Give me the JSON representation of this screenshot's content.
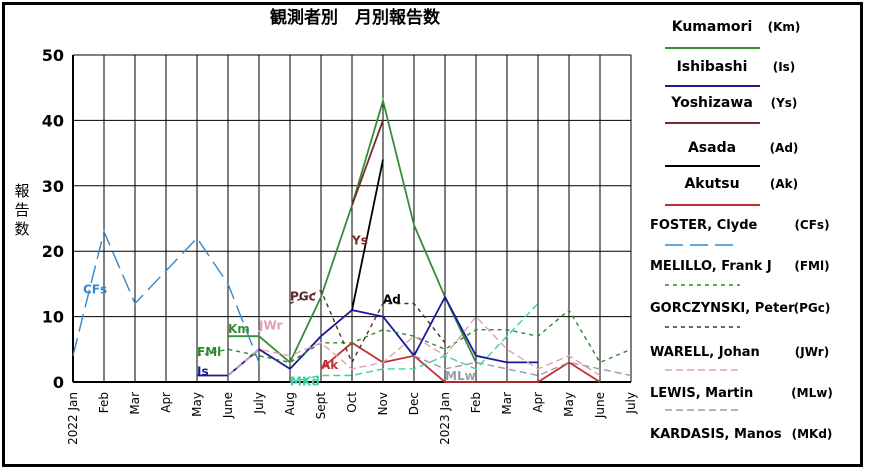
{
  "chart_data": {
    "type": "line",
    "title": "観測者別　月別報告数",
    "ylabel": "報告数",
    "xlabel": "",
    "ylim": [
      0,
      50
    ],
    "yticks": [
      0,
      10,
      20,
      30,
      40,
      50
    ],
    "grid": true,
    "legend_position": "right",
    "categories": [
      "2022 Jan",
      "Feb",
      "Mar",
      "Apr",
      "May",
      "June",
      "July",
      "Aug",
      "Sept",
      "Oct",
      "Nov",
      "Dec",
      "2023 Jan",
      "Feb",
      "Mar",
      "Apr",
      "May",
      "June",
      "July"
    ],
    "series": [
      {
        "name": "Kumamori",
        "abbr": "(Km)",
        "color": "#3a8a3a",
        "dash": "solid",
        "label": "Km",
        "label_at": 5,
        "label_y": 7.5,
        "values": [
          null,
          null,
          null,
          null,
          null,
          7,
          7,
          3,
          13,
          27,
          43,
          24,
          13,
          3,
          null,
          null,
          null,
          null,
          null
        ]
      },
      {
        "name": "Ishibashi",
        "abbr": "(Is)",
        "color": "#1a1a9a",
        "dash": "solid",
        "label": "Is",
        "label_at": 4,
        "label_y": 1,
        "values": [
          null,
          null,
          null,
          null,
          1,
          1,
          5,
          2,
          7,
          11,
          10,
          4,
          13,
          4,
          3,
          3,
          null,
          null,
          null
        ]
      },
      {
        "name": "Yoshizawa",
        "abbr": "(Ys)",
        "color": "#7a2a2a",
        "dash": "solid",
        "label": "Ys",
        "label_at": 9,
        "label_y": 21,
        "values": [
          null,
          null,
          null,
          null,
          null,
          null,
          null,
          null,
          null,
          27,
          40,
          null,
          null,
          null,
          null,
          null,
          null,
          null,
          null
        ]
      },
      {
        "name": "Asada",
        "abbr": "(Ad)",
        "color": "#000000",
        "dash": "solid",
        "label": "Ad",
        "label_at": 10,
        "label_y": 12,
        "values": [
          null,
          null,
          null,
          null,
          null,
          null,
          null,
          null,
          null,
          11,
          34,
          null,
          null,
          null,
          null,
          null,
          null,
          null,
          null
        ]
      },
      {
        "name": "Akutsu",
        "abbr": "(Ak)",
        "color": "#c03030",
        "dash": "solid",
        "label": "Ak",
        "label_at": 8,
        "label_y": 2,
        "values": [
          null,
          null,
          null,
          null,
          null,
          null,
          null,
          null,
          2,
          6,
          3,
          4,
          0,
          0,
          0,
          0,
          3,
          0,
          null
        ]
      },
      {
        "name": "FOSTER, Clyde",
        "abbr": "(CFs)",
        "color": "#3388cc",
        "dash": "long",
        "label": "CFs",
        "label_at": 0,
        "label_y": 13.5,
        "values": [
          4,
          23,
          12,
          17,
          22,
          15,
          3,
          null,
          null,
          null,
          null,
          null,
          null,
          null,
          null,
          null,
          null,
          null,
          null
        ]
      },
      {
        "name": "MELILLO, Frank J",
        "abbr": "(FMl)",
        "color": "#2a8a2a",
        "dash": "short",
        "label": "FMl",
        "label_at": 4,
        "label_y": 4,
        "values": [
          null,
          null,
          null,
          null,
          4,
          5,
          4,
          3,
          6,
          6,
          8,
          7,
          5,
          8,
          8,
          7,
          11,
          3,
          5
        ]
      },
      {
        "name": "GORCZYNSKI, Peter",
        "abbr": "(PGc)",
        "color": "#5a2a2a",
        "dash": "short",
        "label": "PGc",
        "label_at": 7,
        "label_y": 12.5,
        "values": [
          null,
          null,
          null,
          null,
          null,
          null,
          null,
          12,
          14,
          3,
          12,
          12,
          6,
          null,
          null,
          null,
          null,
          null,
          null
        ]
      },
      {
        "name": "WARELL, Johan",
        "abbr": "(JWr)",
        "color": "#e0a0b0",
        "dash": "dash",
        "label": "JWr",
        "label_at": 6,
        "label_y": 8,
        "values": [
          null,
          null,
          null,
          null,
          null,
          1,
          5,
          4,
          6,
          2,
          3,
          7,
          4,
          10,
          5,
          2,
          4,
          1,
          null
        ]
      },
      {
        "name": "LEWIS, Martin",
        "abbr": "(MLw)",
        "color": "#9a9aa8",
        "dash": "dash",
        "label": "MLw",
        "label_at": 12,
        "label_y": 0.3,
        "values": [
          null,
          null,
          null,
          null,
          null,
          null,
          null,
          null,
          null,
          null,
          null,
          4,
          2,
          3,
          2,
          1,
          3,
          2,
          1
        ]
      },
      {
        "name": "KARDASIS, Manos",
        "abbr": "(MKd)",
        "color": "#40d0a0",
        "dash": "dash",
        "label": "MKd",
        "label_at": 7,
        "label_y": -0.5,
        "values": [
          null,
          null,
          null,
          null,
          null,
          null,
          null,
          0,
          1,
          1,
          2,
          2,
          4,
          2,
          7,
          12,
          null,
          null,
          null
        ]
      }
    ]
  }
}
